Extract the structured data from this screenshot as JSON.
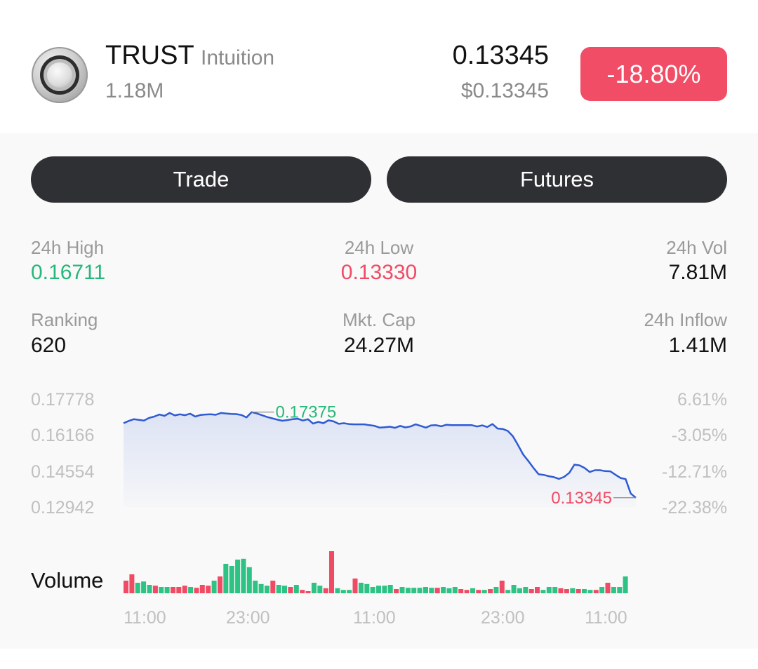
{
  "coin": {
    "symbol": "TRUST",
    "name": "Intuition",
    "market_cap_short": "1.18M",
    "price": "0.13345",
    "price_usd": "$0.13345",
    "change": "-18.80%",
    "icon": "coin-logo-icon"
  },
  "actions": {
    "trade": "Trade",
    "futures": "Futures"
  },
  "stats": {
    "high_label": "24h High",
    "high_value": "0.16711",
    "low_label": "24h Low",
    "low_value": "0.13330",
    "vol_label": "24h Vol",
    "vol_value": "7.81M",
    "rank_label": "Ranking",
    "rank_value": "620",
    "mcap_label": "Mkt. Cap",
    "mcap_value": "24.27M",
    "inflow_label": "24h Inflow",
    "inflow_value": "1.41M"
  },
  "chart_data": {
    "type": "line",
    "y_ticks": [
      "0.17778",
      "0.16166",
      "0.14554",
      "0.12942"
    ],
    "y_right_ticks": [
      "6.61%",
      "-3.05%",
      "-12.71%",
      "-22.38%"
    ],
    "ylim": [
      0.12942,
      0.17778
    ],
    "x_ticks": [
      "11:00",
      "23:00",
      "11:00",
      "23:00",
      "11:00"
    ],
    "max_label": "0.17375",
    "min_label": "0.13345",
    "price_series": [
      0.1672,
      0.1682,
      0.169,
      0.1687,
      0.1684,
      0.1696,
      0.1702,
      0.1711,
      0.1705,
      0.1718,
      0.1707,
      0.1712,
      0.1708,
      0.1715,
      0.1702,
      0.1709,
      0.1711,
      0.1712,
      0.171,
      0.1718,
      0.1716,
      0.1714,
      0.1713,
      0.1709,
      0.1698,
      0.1722,
      0.1716,
      0.1708,
      0.17,
      0.1694,
      0.1688,
      0.1683,
      0.1686,
      0.169,
      0.1692,
      0.1684,
      0.169,
      0.167,
      0.1678,
      0.1672,
      0.1685,
      0.168,
      0.1669,
      0.1672,
      0.1668,
      0.1667,
      0.1667,
      0.1667,
      0.1663,
      0.166,
      0.1652,
      0.1654,
      0.1656,
      0.1651,
      0.166,
      0.1653,
      0.1657,
      0.1667,
      0.166,
      0.1652,
      0.1662,
      0.1663,
      0.1658,
      0.1665,
      0.1663,
      0.1663,
      0.1663,
      0.1663,
      0.1663,
      0.1657,
      0.1662,
      0.1655,
      0.1668,
      0.1648,
      0.1646,
      0.1637,
      0.1613,
      0.1573,
      0.1531,
      0.1502,
      0.1471,
      0.1442,
      0.1439,
      0.1433,
      0.1429,
      0.1421,
      0.143,
      0.1448,
      0.1485,
      0.1482,
      0.147,
      0.1452,
      0.146,
      0.146,
      0.1456,
      0.1455,
      0.144,
      0.1425,
      0.142,
      0.1355,
      0.1336
    ],
    "volume_series": [
      {
        "v": 0.3,
        "d": "down"
      },
      {
        "v": 0.45,
        "d": "down"
      },
      {
        "v": 0.25,
        "d": "up"
      },
      {
        "v": 0.28,
        "d": "up"
      },
      {
        "v": 0.2,
        "d": "up"
      },
      {
        "v": 0.18,
        "d": "down"
      },
      {
        "v": 0.15,
        "d": "up"
      },
      {
        "v": 0.15,
        "d": "up"
      },
      {
        "v": 0.15,
        "d": "down"
      },
      {
        "v": 0.15,
        "d": "down"
      },
      {
        "v": 0.18,
        "d": "down"
      },
      {
        "v": 0.15,
        "d": "up"
      },
      {
        "v": 0.13,
        "d": "down"
      },
      {
        "v": 0.2,
        "d": "down"
      },
      {
        "v": 0.18,
        "d": "down"
      },
      {
        "v": 0.3,
        "d": "up"
      },
      {
        "v": 0.4,
        "d": "down"
      },
      {
        "v": 0.7,
        "d": "up"
      },
      {
        "v": 0.65,
        "d": "up"
      },
      {
        "v": 0.8,
        "d": "up"
      },
      {
        "v": 0.82,
        "d": "up"
      },
      {
        "v": 0.62,
        "d": "up"
      },
      {
        "v": 0.3,
        "d": "up"
      },
      {
        "v": 0.22,
        "d": "up"
      },
      {
        "v": 0.18,
        "d": "up"
      },
      {
        "v": 0.3,
        "d": "down"
      },
      {
        "v": 0.2,
        "d": "up"
      },
      {
        "v": 0.18,
        "d": "up"
      },
      {
        "v": 0.15,
        "d": "down"
      },
      {
        "v": 0.2,
        "d": "up"
      },
      {
        "v": 0.08,
        "d": "down"
      },
      {
        "v": 0.05,
        "d": "down"
      },
      {
        "v": 0.25,
        "d": "up"
      },
      {
        "v": 0.18,
        "d": "up"
      },
      {
        "v": 0.12,
        "d": "down"
      },
      {
        "v": 1.0,
        "d": "down"
      },
      {
        "v": 0.12,
        "d": "up"
      },
      {
        "v": 0.08,
        "d": "up"
      },
      {
        "v": 0.08,
        "d": "up"
      },
      {
        "v": 0.35,
        "d": "down"
      },
      {
        "v": 0.25,
        "d": "up"
      },
      {
        "v": 0.22,
        "d": "up"
      },
      {
        "v": 0.15,
        "d": "up"
      },
      {
        "v": 0.18,
        "d": "up"
      },
      {
        "v": 0.18,
        "d": "up"
      },
      {
        "v": 0.2,
        "d": "up"
      },
      {
        "v": 0.1,
        "d": "down"
      },
      {
        "v": 0.15,
        "d": "up"
      },
      {
        "v": 0.13,
        "d": "up"
      },
      {
        "v": 0.13,
        "d": "up"
      },
      {
        "v": 0.13,
        "d": "up"
      },
      {
        "v": 0.15,
        "d": "up"
      },
      {
        "v": 0.13,
        "d": "up"
      },
      {
        "v": 0.13,
        "d": "down"
      },
      {
        "v": 0.15,
        "d": "up"
      },
      {
        "v": 0.12,
        "d": "up"
      },
      {
        "v": 0.15,
        "d": "up"
      },
      {
        "v": 0.1,
        "d": "down"
      },
      {
        "v": 0.08,
        "d": "down"
      },
      {
        "v": 0.12,
        "d": "up"
      },
      {
        "v": 0.08,
        "d": "down"
      },
      {
        "v": 0.08,
        "d": "up"
      },
      {
        "v": 0.1,
        "d": "down"
      },
      {
        "v": 0.15,
        "d": "up"
      },
      {
        "v": 0.3,
        "d": "down"
      },
      {
        "v": 0.08,
        "d": "up"
      },
      {
        "v": 0.2,
        "d": "up"
      },
      {
        "v": 0.12,
        "d": "up"
      },
      {
        "v": 0.15,
        "d": "up"
      },
      {
        "v": 0.1,
        "d": "down"
      },
      {
        "v": 0.15,
        "d": "down"
      },
      {
        "v": 0.08,
        "d": "up"
      },
      {
        "v": 0.15,
        "d": "up"
      },
      {
        "v": 0.15,
        "d": "up"
      },
      {
        "v": 0.12,
        "d": "down"
      },
      {
        "v": 0.1,
        "d": "down"
      },
      {
        "v": 0.12,
        "d": "up"
      },
      {
        "v": 0.1,
        "d": "down"
      },
      {
        "v": 0.1,
        "d": "up"
      },
      {
        "v": 0.08,
        "d": "up"
      },
      {
        "v": 0.08,
        "d": "down"
      },
      {
        "v": 0.15,
        "d": "up"
      },
      {
        "v": 0.25,
        "d": "down"
      },
      {
        "v": 0.15,
        "d": "up"
      },
      {
        "v": 0.15,
        "d": "up"
      },
      {
        "v": 0.4,
        "d": "up"
      }
    ]
  }
}
